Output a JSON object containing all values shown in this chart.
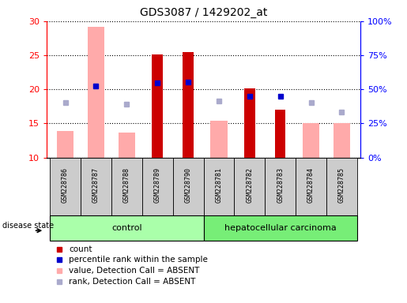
{
  "title": "GDS3087 / 1429202_at",
  "samples": [
    "GSM228786",
    "GSM228787",
    "GSM228788",
    "GSM228789",
    "GSM228790",
    "GSM228781",
    "GSM228782",
    "GSM228783",
    "GSM228784",
    "GSM228785"
  ],
  "groups": [
    "control",
    "control",
    "control",
    "control",
    "control",
    "hepatocellular carcinoma",
    "hepatocellular carcinoma",
    "hepatocellular carcinoma",
    "hepatocellular carcinoma",
    "hepatocellular carcinoma"
  ],
  "count_values": [
    null,
    null,
    null,
    25.1,
    25.5,
    null,
    20.1,
    17.0,
    null,
    null
  ],
  "percentile_rank": [
    null,
    20.5,
    null,
    21.0,
    21.1,
    null,
    19.0,
    19.0,
    null,
    null
  ],
  "absent_value": [
    13.9,
    29.2,
    13.7,
    null,
    null,
    15.4,
    null,
    null,
    15.1,
    15.0
  ],
  "absent_rank": [
    18.1,
    20.5,
    17.8,
    null,
    null,
    18.3,
    null,
    null,
    18.1,
    16.7
  ],
  "ylim_left": [
    10,
    30
  ],
  "ylim_right": [
    0,
    100
  ],
  "yticks_left": [
    10,
    15,
    20,
    25,
    30
  ],
  "yticks_right": [
    0,
    25,
    50,
    75,
    100
  ],
  "yticklabels_right": [
    "0%",
    "25%",
    "50%",
    "75%",
    "100%"
  ],
  "color_count": "#cc0000",
  "color_percentile": "#0000cc",
  "color_absent_value": "#ffaaaa",
  "color_absent_rank": "#aaaacc",
  "color_control_bg": "#aaffaa",
  "color_cancer_bg": "#77ee77",
  "color_sample_bg": "#cccccc",
  "disease_state_label": "disease state",
  "legend_items": [
    {
      "label": "count",
      "color": "#cc0000"
    },
    {
      "label": "percentile rank within the sample",
      "color": "#0000cc"
    },
    {
      "label": "value, Detection Call = ABSENT",
      "color": "#ffaaaa"
    },
    {
      "label": "rank, Detection Call = ABSENT",
      "color": "#aaaacc"
    }
  ]
}
